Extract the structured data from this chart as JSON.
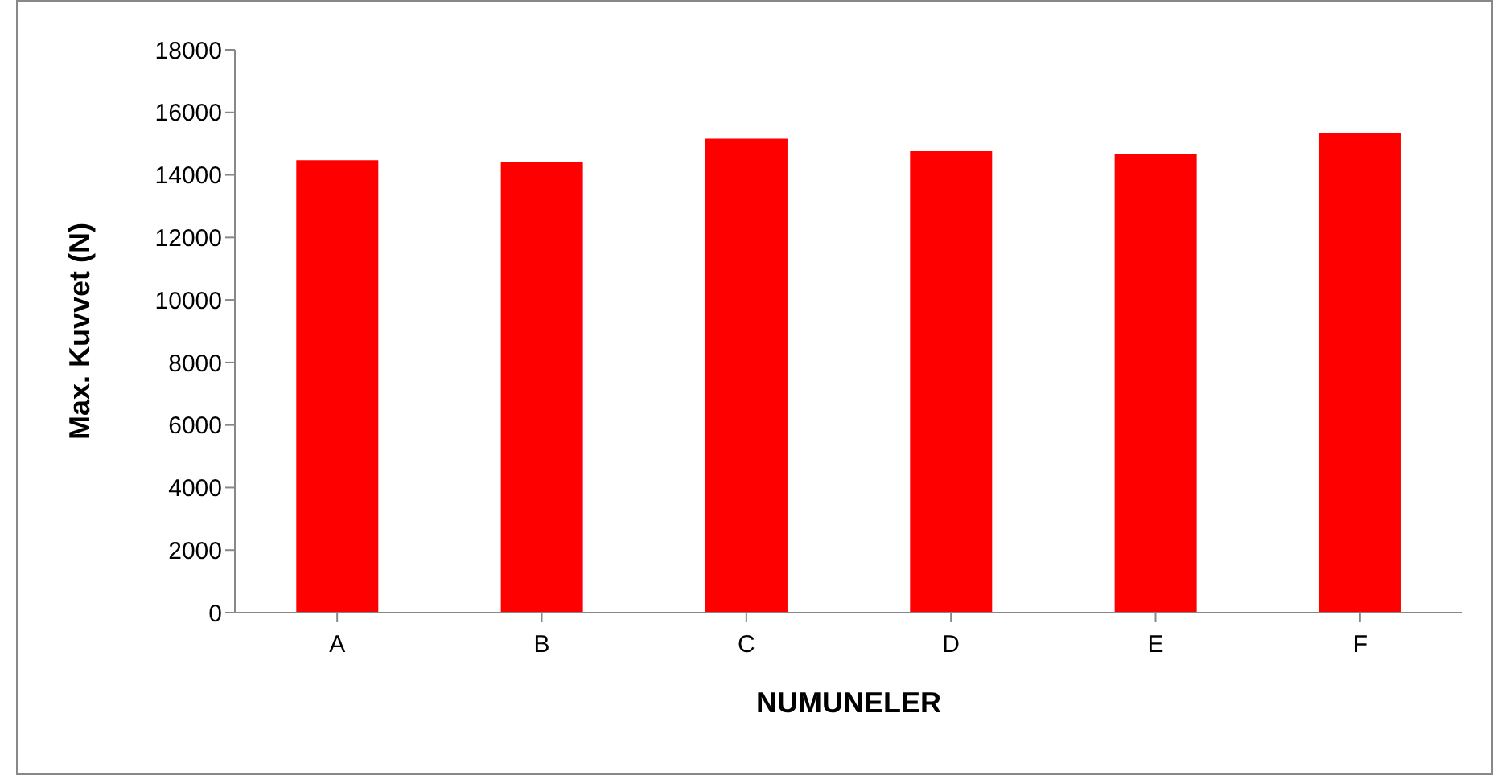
{
  "chart_data": {
    "type": "bar",
    "xlabel": "NUMUNELER",
    "ylabel": "Max. Kuvvet (N)",
    "categories": [
      "A",
      "B",
      "C",
      "D",
      "E",
      "F"
    ],
    "values": [
      14470,
      14420,
      15160,
      14760,
      14660,
      15340
    ],
    "color": "#ff0000",
    "ylim": [
      0,
      18000
    ],
    "yticks": [
      0,
      2000,
      4000,
      6000,
      8000,
      10000,
      12000,
      14000,
      16000,
      18000
    ],
    "grid": false
  }
}
